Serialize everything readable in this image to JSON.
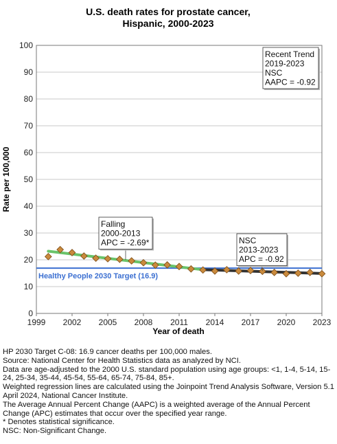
{
  "chart_data": {
    "type": "line",
    "title_lines": [
      "U.S. death rates for prostate cancer,",
      "Hispanic,  2000-2023"
    ],
    "xlabel": "Year of death",
    "ylabel": "Rate per 100,000",
    "xlim": [
      1999,
      2023
    ],
    "ylim": [
      0,
      100
    ],
    "xticks": [
      "1999",
      "2002",
      "2005",
      "2008",
      "2011",
      "2014",
      "2017",
      "2020",
      "2023"
    ],
    "yticks": [
      "0",
      "10",
      "20",
      "30",
      "40",
      "50",
      "60",
      "70",
      "80",
      "90",
      "100"
    ],
    "grid": "horizontal",
    "observed": {
      "x": [
        2000,
        2001,
        2002,
        2003,
        2004,
        2005,
        2006,
        2007,
        2008,
        2009,
        2010,
        2011,
        2012,
        2013,
        2014,
        2015,
        2016,
        2017,
        2018,
        2019,
        2020,
        2021,
        2022,
        2023
      ],
      "y": [
        21.2,
        23.8,
        22.7,
        21.4,
        20.6,
        20.4,
        20.2,
        19.6,
        18.9,
        18.0,
        18.1,
        17.5,
        16.6,
        16.2,
        15.8,
        16.3,
        15.8,
        16.0,
        15.7,
        15.3,
        14.8,
        15.0,
        15.3,
        14.8
      ]
    },
    "segments": [
      {
        "x": [
          2000,
          2013
        ],
        "y": [
          23.2,
          16.3
        ],
        "color": "#6ac46a"
      },
      {
        "x": [
          2013,
          2023
        ],
        "y": [
          16.3,
          14.9
        ],
        "color": "#333333"
      }
    ],
    "target": {
      "value": 16.9,
      "label": "Healthy People 2030 Target (16.9)",
      "color": "#3b6fd1"
    },
    "annotations": [
      {
        "lines": [
          "Falling",
          "2000-2013",
          "APC = -2.69*"
        ]
      },
      {
        "lines": [
          "NSC",
          "2013-2023",
          "APC = -0.92"
        ]
      },
      {
        "lines": [
          "Recent Trend",
          "2019-2023",
          "NSC",
          "AAPC = -0.92"
        ]
      }
    ],
    "colors": {
      "marker_fill": "#c98a3d",
      "marker_stroke": "#7a4a14"
    }
  },
  "footnotes": [
    "HP 2030 Target C-08: 16.9 cancer deaths per 100,000 males.",
    "Source: National Center for Health Statistics data as analyzed by NCI.",
    "Data are age-adjusted to the 2000 U.S. standard population using age groups: <1, 1-4, 5-14, 15-24, 25-34, 35-44, 45-54, 55-64, 65-74, 75-84, 85+.",
    "Weighted regression lines are calculated using the Joinpoint Trend Analysis Software, Version 5.1 April 2024, National Cancer Institute.",
    "The Average Annual Percent Change (AAPC) is a weighted average of the Annual Percent Change (APC) estimates that occur over the specified year range.",
    "* Denotes statistical significance.",
    "NSC: Non-Significant Change."
  ]
}
